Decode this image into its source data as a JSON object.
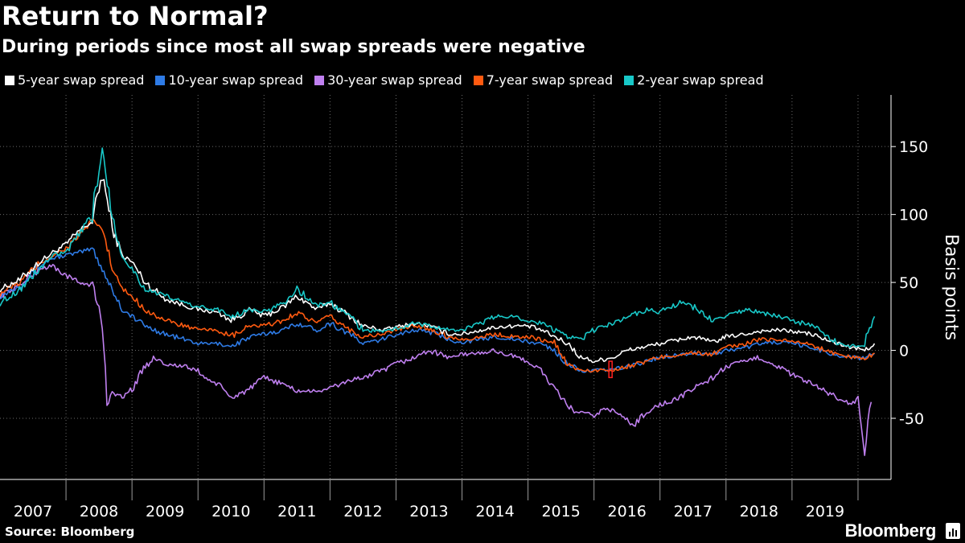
{
  "title": "Return to Normal?",
  "subtitle": "During periods since most all swap spreads were negative",
  "source": "Source: Bloomberg",
  "brand": "Bloomberg",
  "chart_data": {
    "type": "line",
    "ylabel": "Basis points",
    "ylim": [
      -95,
      188
    ],
    "xlim": [
      2007.0,
      2020.5
    ],
    "y_ticks": [
      150,
      100,
      50,
      0,
      -50
    ],
    "x_tick_labels": [
      "2007",
      "2008",
      "2009",
      "2010",
      "2011",
      "2012",
      "2013",
      "2014",
      "2015",
      "2016",
      "2017",
      "2018",
      "2019"
    ],
    "grid": true,
    "legend_position": "top-left",
    "series": [
      {
        "name": "5-year swap spread",
        "color": "#ffffff",
        "x": [
          2007.0,
          2007.3,
          2007.6,
          2007.8,
          2008.0,
          2008.2,
          2008.4,
          2008.55,
          2008.7,
          2008.85,
          2009.0,
          2009.2,
          2009.5,
          2009.8,
          2010.0,
          2010.3,
          2010.5,
          2010.8,
          2011.0,
          2011.3,
          2011.5,
          2011.8,
          2012.0,
          2012.3,
          2012.5,
          2012.8,
          2013.0,
          2013.3,
          2013.5,
          2013.8,
          2014.0,
          2014.3,
          2014.5,
          2014.8,
          2015.0,
          2015.2,
          2015.4,
          2015.6,
          2015.8,
          2016.0,
          2016.3,
          2016.5,
          2016.8,
          2017.0,
          2017.3,
          2017.5,
          2017.8,
          2018.0,
          2018.3,
          2018.5,
          2018.8,
          2019.0,
          2019.3,
          2019.5,
          2019.7,
          2019.9,
          2020.1,
          2020.25
        ],
        "y": [
          45,
          52,
          65,
          72,
          78,
          88,
          95,
          130,
          90,
          70,
          65,
          50,
          38,
          33,
          30,
          28,
          22,
          30,
          25,
          32,
          40,
          30,
          35,
          25,
          18,
          15,
          17,
          20,
          18,
          12,
          12,
          15,
          17,
          18,
          18,
          15,
          10,
          5,
          -5,
          -8,
          -5,
          0,
          3,
          5,
          8,
          10,
          6,
          10,
          12,
          14,
          15,
          14,
          12,
          8,
          5,
          2,
          0,
          5
        ]
      },
      {
        "name": "10-year swap spread",
        "color": "#2e7be6",
        "x": [
          2007.0,
          2007.3,
          2007.6,
          2007.8,
          2008.0,
          2008.2,
          2008.4,
          2008.55,
          2008.7,
          2008.85,
          2009.0,
          2009.2,
          2009.5,
          2009.8,
          2010.0,
          2010.3,
          2010.5,
          2010.8,
          2011.0,
          2011.3,
          2011.5,
          2011.8,
          2012.0,
          2012.3,
          2012.5,
          2012.8,
          2013.0,
          2013.3,
          2013.5,
          2013.8,
          2014.0,
          2014.3,
          2014.5,
          2014.8,
          2015.0,
          2015.2,
          2015.4,
          2015.6,
          2015.8,
          2016.0,
          2016.3,
          2016.5,
          2016.8,
          2017.0,
          2017.3,
          2017.5,
          2017.8,
          2018.0,
          2018.3,
          2018.5,
          2018.8,
          2019.0,
          2019.3,
          2019.5,
          2019.7,
          2019.9,
          2020.1,
          2020.25
        ],
        "y": [
          40,
          48,
          62,
          68,
          70,
          72,
          75,
          60,
          45,
          30,
          25,
          18,
          12,
          8,
          5,
          5,
          3,
          10,
          12,
          15,
          20,
          15,
          20,
          12,
          5,
          8,
          12,
          15,
          14,
          8,
          6,
          8,
          10,
          8,
          6,
          5,
          0,
          -10,
          -15,
          -15,
          -14,
          -12,
          -8,
          -5,
          -3,
          -2,
          -3,
          0,
          2,
          5,
          6,
          5,
          2,
          -1,
          -4,
          -5,
          -6,
          -2
        ]
      },
      {
        "name": "30-year swap spread",
        "color": "#c080f0",
        "x": [
          2007.0,
          2007.3,
          2007.6,
          2007.8,
          2008.0,
          2008.2,
          2008.4,
          2008.55,
          2008.62,
          2008.7,
          2008.85,
          2009.0,
          2009.2,
          2009.35,
          2009.5,
          2009.8,
          2010.0,
          2010.1,
          2010.3,
          2010.5,
          2010.8,
          2011.0,
          2011.3,
          2011.5,
          2011.8,
          2012.0,
          2012.3,
          2012.5,
          2012.8,
          2013.0,
          2013.3,
          2013.5,
          2013.8,
          2014.0,
          2014.3,
          2014.5,
          2014.8,
          2015.0,
          2015.2,
          2015.35,
          2015.5,
          2015.7,
          2016.0,
          2016.2,
          2016.4,
          2016.6,
          2016.8,
          2017.0,
          2017.3,
          2017.5,
          2017.8,
          2018.0,
          2018.3,
          2018.5,
          2018.8,
          2019.0,
          2019.3,
          2019.5,
          2019.7,
          2019.9,
          2020.0,
          2020.05,
          2020.1,
          2020.2
        ],
        "y": [
          40,
          48,
          60,
          62,
          55,
          50,
          48,
          20,
          -40,
          -30,
          -35,
          -28,
          -12,
          -5,
          -10,
          -12,
          -15,
          -20,
          -25,
          -35,
          -28,
          -20,
          -25,
          -30,
          -30,
          -28,
          -22,
          -20,
          -15,
          -10,
          -5,
          0,
          -5,
          -3,
          -2,
          0,
          -5,
          -8,
          -15,
          -25,
          -35,
          -45,
          -48,
          -42,
          -48,
          -55,
          -45,
          -40,
          -35,
          -28,
          -20,
          -12,
          -8,
          -5,
          -12,
          -18,
          -25,
          -30,
          -35,
          -40,
          -35,
          -55,
          -75,
          -38
        ]
      },
      {
        "name": "7-year swap spread",
        "color": "#ff5a10",
        "x": [
          2007.0,
          2007.3,
          2007.6,
          2007.8,
          2008.0,
          2008.2,
          2008.4,
          2008.55,
          2008.7,
          2008.85,
          2009.0,
          2009.2,
          2009.5,
          2009.8,
          2010.0,
          2010.3,
          2010.5,
          2010.8,
          2011.0,
          2011.3,
          2011.5,
          2011.8,
          2012.0,
          2012.3,
          2012.5,
          2012.8,
          2013.0,
          2013.3,
          2013.5,
          2013.8,
          2014.0,
          2014.3,
          2014.5,
          2014.8,
          2015.0,
          2015.2,
          2015.4,
          2015.6,
          2015.8,
          2016.0,
          2016.3,
          2016.5,
          2016.8,
          2017.0,
          2017.3,
          2017.5,
          2017.8,
          2018.0,
          2018.3,
          2018.5,
          2018.8,
          2019.0,
          2019.3,
          2019.5,
          2019.7,
          2019.9,
          2020.1,
          2020.25
        ],
        "y": [
          42,
          50,
          64,
          70,
          75,
          85,
          95,
          90,
          60,
          45,
          40,
          30,
          22,
          18,
          15,
          15,
          10,
          18,
          18,
          22,
          28,
          20,
          25,
          15,
          10,
          12,
          15,
          18,
          16,
          10,
          8,
          10,
          12,
          10,
          10,
          8,
          5,
          -10,
          -15,
          -15,
          -14,
          -12,
          -8,
          -5,
          -3,
          -2,
          -3,
          2,
          5,
          8,
          8,
          7,
          4,
          0,
          -3,
          -5,
          -6,
          -2
        ]
      },
      {
        "name": "2-year swap spread",
        "color": "#18c8c8",
        "x": [
          2007.0,
          2007.3,
          2007.6,
          2007.8,
          2008.0,
          2008.2,
          2008.4,
          2008.55,
          2008.7,
          2008.85,
          2009.0,
          2009.2,
          2009.5,
          2009.8,
          2010.0,
          2010.3,
          2010.5,
          2010.8,
          2011.0,
          2011.3,
          2011.5,
          2011.8,
          2012.0,
          2012.3,
          2012.5,
          2012.8,
          2013.0,
          2013.3,
          2013.5,
          2013.8,
          2014.0,
          2014.3,
          2014.5,
          2014.8,
          2015.0,
          2015.2,
          2015.4,
          2015.6,
          2015.8,
          2016.0,
          2016.3,
          2016.5,
          2016.8,
          2017.0,
          2017.3,
          2017.5,
          2017.8,
          2018.0,
          2018.3,
          2018.5,
          2018.8,
          2019.0,
          2019.3,
          2019.5,
          2019.7,
          2019.9,
          2020.1,
          2020.25
        ],
        "y": [
          35,
          45,
          60,
          70,
          72,
          85,
          100,
          150,
          100,
          70,
          60,
          45,
          40,
          35,
          32,
          30,
          25,
          30,
          28,
          35,
          45,
          33,
          35,
          25,
          15,
          14,
          16,
          20,
          18,
          15,
          15,
          20,
          25,
          25,
          22,
          20,
          15,
          10,
          8,
          15,
          20,
          25,
          30,
          28,
          35,
          32,
          22,
          25,
          30,
          28,
          25,
          22,
          18,
          12,
          5,
          3,
          5,
          25
        ]
      }
    ],
    "annotations": [
      {
        "type": "box",
        "x": 2016.25,
        "y_from": -20,
        "y_to": -8,
        "color": "#ff2020"
      }
    ]
  }
}
